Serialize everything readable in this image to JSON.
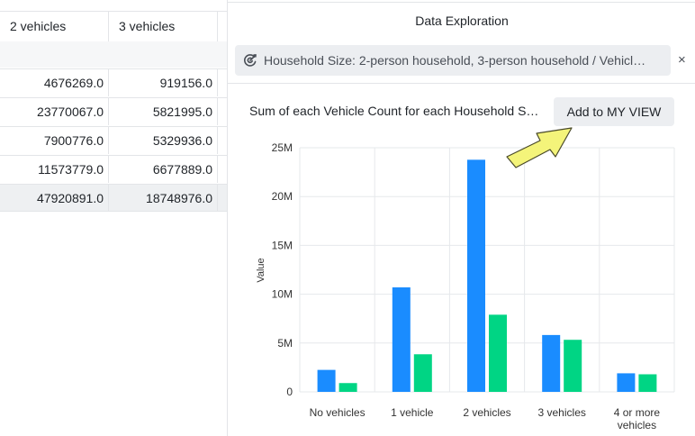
{
  "table": {
    "headers": [
      "2 vehicles",
      "3 vehicles"
    ],
    "rows": [
      [
        "4676269.0",
        "919156.0"
      ],
      [
        "23770067.0",
        "5821995.0"
      ],
      [
        "7900776.0",
        "5329936.0"
      ],
      [
        "11573779.0",
        "6677889.0"
      ],
      [
        "47920891.0",
        "18748976.0"
      ]
    ]
  },
  "panel": {
    "title": "Data Exploration",
    "filter": "Household Size: 2-person household, 3-person household / Vehicl…",
    "filter_close": "×",
    "chart_title": "Sum of each Vehicle Count for each Household S…",
    "add_button": "Add to MY VIEW",
    "icons": {
      "filter": "filter-icon",
      "close": "close-icon",
      "annotation": "arrow-icon"
    }
  },
  "chart_data": {
    "type": "bar",
    "ylabel": "Value",
    "ylim": [
      0,
      25000000
    ],
    "yticks": [
      "0",
      "5M",
      "10M",
      "15M",
      "20M",
      "25M"
    ],
    "categories": [
      "No vehicles",
      "1 vehicle",
      "2 vehicles",
      "3 vehicles",
      "4 or more vehicles"
    ],
    "series": [
      {
        "values": [
          2250000,
          10700000,
          23770067,
          5821995,
          1900000
        ],
        "color": "#1a8cff"
      },
      {
        "values": [
          900000,
          3850000,
          7900776,
          5329936,
          1800000
        ],
        "color": "#00d584"
      }
    ],
    "grid": true
  }
}
